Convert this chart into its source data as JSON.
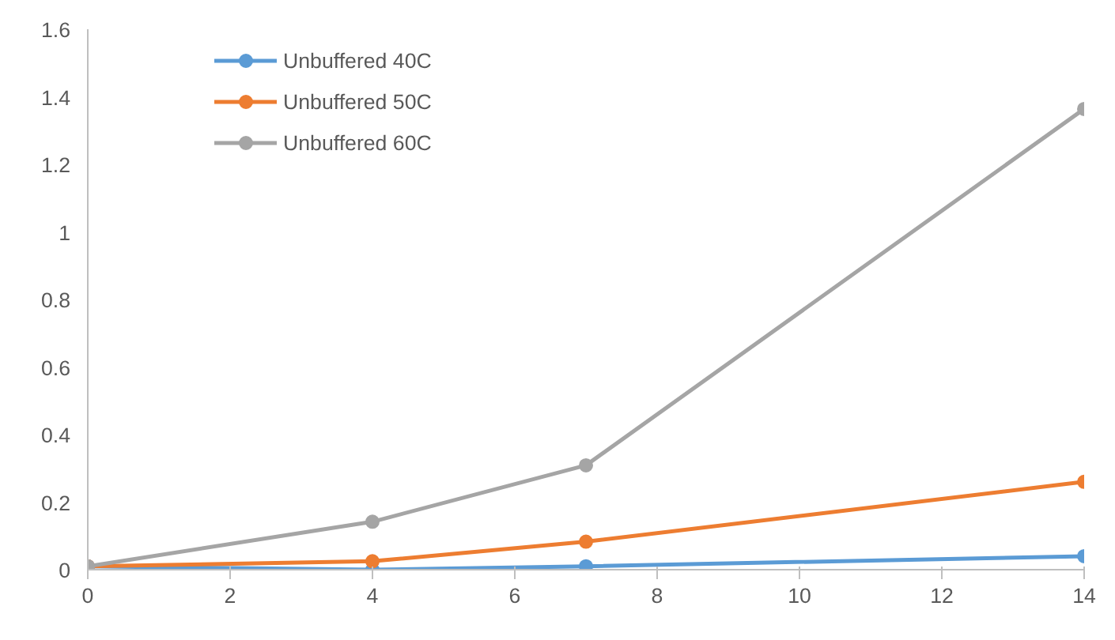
{
  "chart_data": {
    "type": "line",
    "x": [
      0,
      4,
      7,
      14
    ],
    "series": [
      {
        "name": "Unbuffered 40C",
        "color": "#5b9bd5",
        "values": [
          0.01,
          0.0,
          0.01,
          0.04
        ]
      },
      {
        "name": "Unbuffered 50C",
        "color": "#ed7d31",
        "values": [
          0.01,
          0.025,
          0.083,
          0.26
        ]
      },
      {
        "name": "Unbuffered 60C",
        "color": "#a5a5a5",
        "values": [
          0.01,
          0.142,
          0.309,
          1.364
        ]
      }
    ],
    "xlim": [
      0,
      14
    ],
    "xticks": [
      0,
      2,
      4,
      6,
      8,
      10,
      12,
      14
    ],
    "ylim": [
      0,
      1.6
    ],
    "yticks": [
      0,
      0.2,
      0.4,
      0.6,
      0.8,
      1,
      1.2,
      1.4,
      1.6
    ],
    "grid": false,
    "legend": "top left",
    "marker": "circle",
    "line_style": "solid"
  }
}
